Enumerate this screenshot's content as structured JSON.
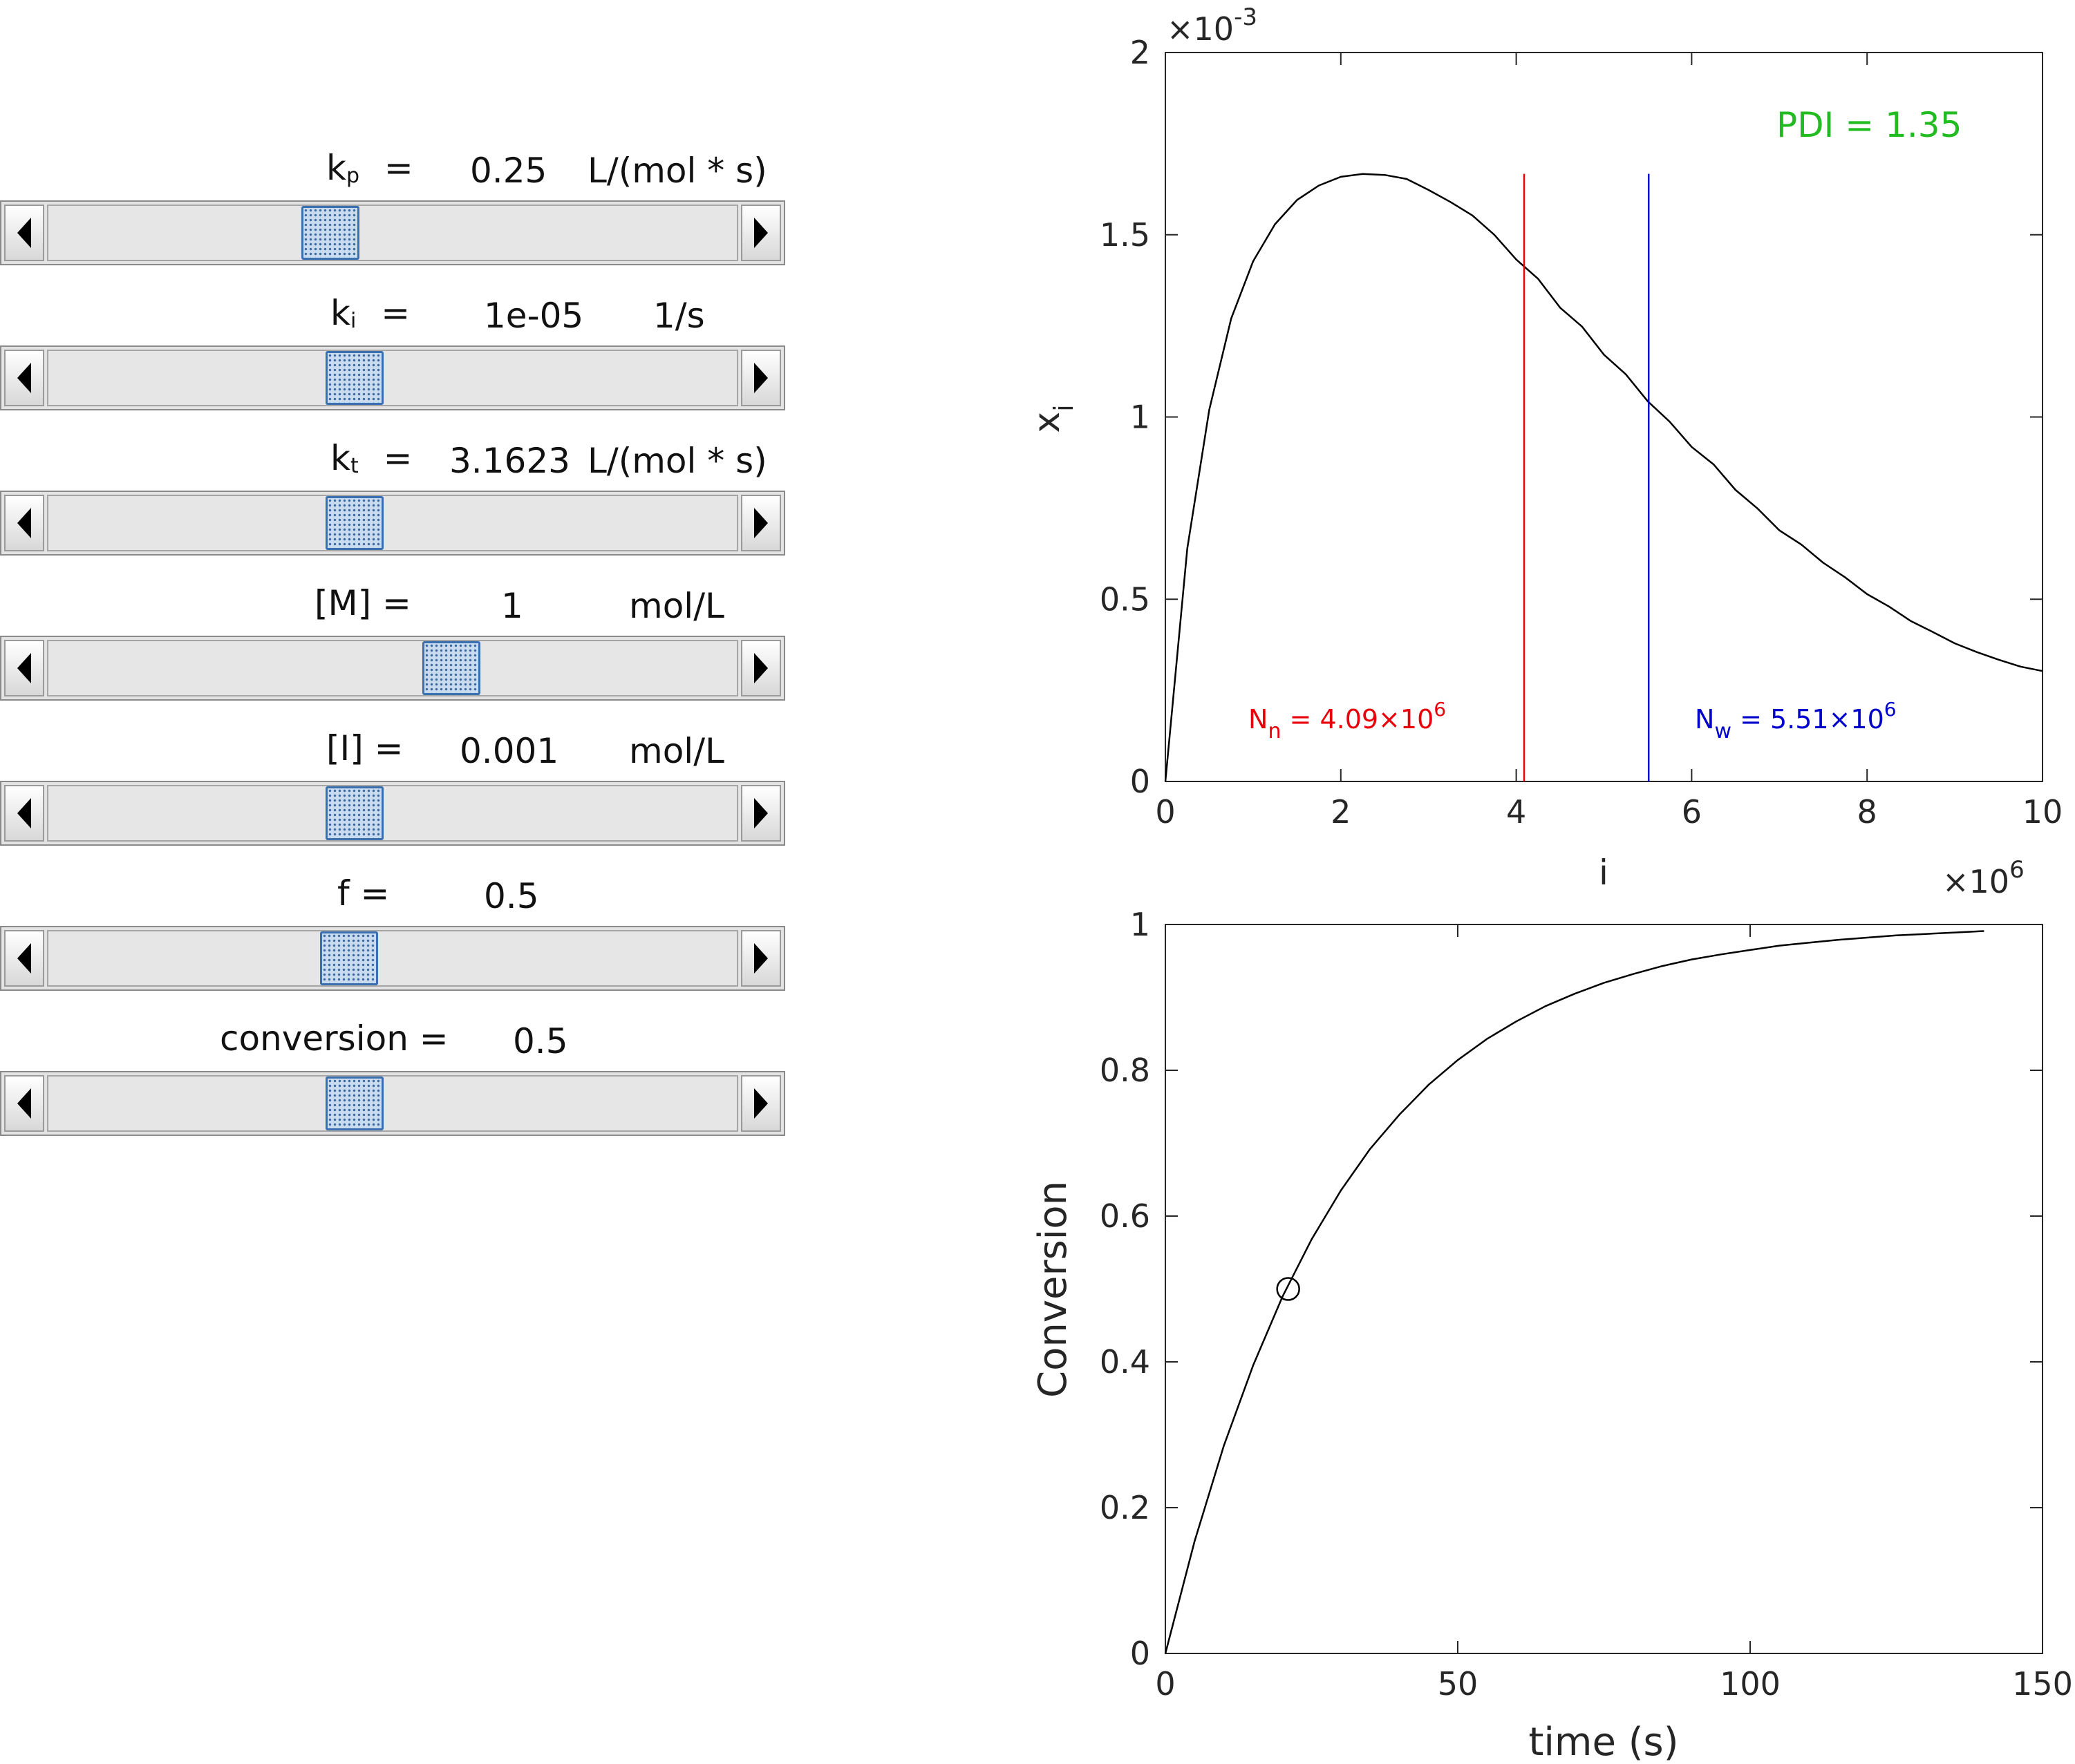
{
  "sliders": [
    {
      "id": "kp",
      "name": "k",
      "sub": "p",
      "eq": "=",
      "value": "0.25",
      "unit": "L/(mol * s)",
      "position": 0.41
    },
    {
      "id": "ki",
      "name": "k",
      "sub": "i",
      "eq": "=",
      "value": "1e-05",
      "unit": "1/s",
      "position": 0.445
    },
    {
      "id": "kt",
      "name": "k",
      "sub": "t",
      "eq": "=",
      "value": "3.1623",
      "unit": "L/(mol * s)",
      "position": 0.445
    },
    {
      "id": "M",
      "name": "[M] =",
      "value": "1",
      "unit": "mol/L",
      "position": 0.585
    },
    {
      "id": "I",
      "name": "[I] =",
      "value": "0.001",
      "unit": "mol/L",
      "position": 0.445
    },
    {
      "id": "f",
      "name": "f =",
      "value": "0.5",
      "unit": "",
      "position": 0.437
    },
    {
      "id": "conv",
      "name": "conversion =",
      "value": "0.5",
      "unit": "",
      "position": 0.445
    }
  ],
  "chart_data": [
    {
      "type": "line",
      "title": "",
      "xlabel": "i",
      "ylabel": "x",
      "ylabel_sub": "i",
      "x_multiplier": "×10",
      "x_multiplier_exp": "6",
      "y_multiplier": "×10",
      "y_multiplier_exp": "-3",
      "xlim": [
        0,
        10
      ],
      "ylim": [
        0,
        2
      ],
      "xticks": [
        "0",
        "2",
        "4",
        "6",
        "8",
        "10"
      ],
      "yticks": [
        "0",
        "0.5",
        "1",
        "1.5",
        "2"
      ],
      "series": [
        {
          "x": [
            0,
            0.25,
            0.5,
            0.75,
            1.0,
            1.25,
            1.5,
            1.75,
            2.0,
            2.25,
            2.5,
            2.75,
            3.0,
            3.25,
            3.5,
            3.75,
            4.0,
            4.25,
            4.5,
            4.75,
            5.0,
            5.25,
            5.5,
            5.75,
            6.0,
            6.25,
            6.5,
            6.75,
            7.0,
            7.25,
            7.5,
            7.75,
            8.0,
            8.25,
            8.5,
            8.75,
            9.0,
            9.25,
            9.5,
            9.75,
            10.0
          ],
          "y": [
            0,
            0.639,
            1.02,
            1.27,
            1.427,
            1.529,
            1.595,
            1.635,
            1.659,
            1.667,
            1.664,
            1.653,
            1.623,
            1.59,
            1.553,
            1.5,
            1.432,
            1.379,
            1.3,
            1.248,
            1.171,
            1.117,
            1.043,
            0.987,
            0.918,
            0.87,
            0.8,
            0.749,
            0.689,
            0.65,
            0.6,
            0.56,
            0.514,
            0.48,
            0.44,
            0.41,
            0.379,
            0.355,
            0.334,
            0.315,
            0.303
          ]
        }
      ],
      "vlines": [
        {
          "name": "Nn",
          "x": 4.09,
          "color": "#e8000b"
        },
        {
          "name": "Nw",
          "x": 5.51,
          "color": "#0000cc"
        }
      ],
      "vline_top": 1.667,
      "annotations": [
        {
          "id": "pdi",
          "text": "PDI = 1.35",
          "color": "#22bb22"
        },
        {
          "id": "nn",
          "base": "N",
          "sub": "n",
          "text": " = 4.09×10",
          "exp": "6",
          "color": "#e8000b"
        },
        {
          "id": "nw",
          "base": "N",
          "sub": "w",
          "text": " = 5.51×10",
          "exp": "6",
          "color": "#0000cc"
        }
      ]
    },
    {
      "type": "line",
      "title": "",
      "xlabel": "time (s)",
      "ylabel": "Conversion",
      "xlim": [
        0,
        150
      ],
      "ylim": [
        0,
        1
      ],
      "xticks": [
        "0",
        "50",
        "100",
        "150"
      ],
      "yticks": [
        "0",
        "0.2",
        "0.4",
        "0.6",
        "0.8",
        "1"
      ],
      "series": [
        {
          "x": [
            0,
            5,
            10,
            15,
            20,
            25,
            30,
            35,
            40,
            45,
            50,
            55,
            60,
            65,
            70,
            75,
            80,
            85,
            90,
            95,
            100,
            105,
            110,
            115,
            120,
            125,
            130,
            135,
            140
          ],
          "y": [
            0,
            0.154,
            0.285,
            0.395,
            0.489,
            0.568,
            0.635,
            0.692,
            0.739,
            0.78,
            0.814,
            0.843,
            0.867,
            0.888,
            0.905,
            0.92,
            0.932,
            0.943,
            0.952,
            0.959,
            0.965,
            0.971,
            0.975,
            0.979,
            0.982,
            0.985,
            0.987,
            0.989,
            0.991
          ]
        }
      ],
      "marker": {
        "x": 21,
        "y": 0.5
      }
    }
  ]
}
